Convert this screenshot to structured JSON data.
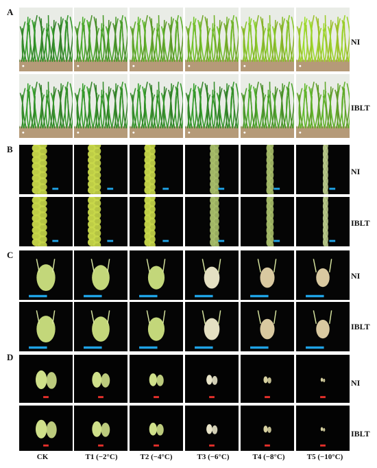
{
  "panels": [
    {
      "letter": "A"
    },
    {
      "letter": "B"
    },
    {
      "letter": "C"
    },
    {
      "letter": "D"
    }
  ],
  "row_labels": {
    "ni": "NI",
    "iblt": "IBLT"
  },
  "columns": [
    "CK",
    "T1 (−2°C)",
    "T2 (−4°C)",
    "T3 (−6°C)",
    "T4 (−8°C)",
    "T5 (−10°C)"
  ],
  "colors": {
    "scale_bar_blue": "#1fa3e6",
    "scale_bar_red": "#e8302b",
    "plant_green": "#3f8a2c",
    "spike_yellow_green": "#c8d84a",
    "damaged_tan": "#d9c9a0"
  },
  "icons": {
    "plant_photo": "wheat-seedling-photo",
    "spike_photo": "wheat-spike-photo",
    "spikelet_photo": "spikelet-photo",
    "floret_photo": "floret-photo"
  }
}
